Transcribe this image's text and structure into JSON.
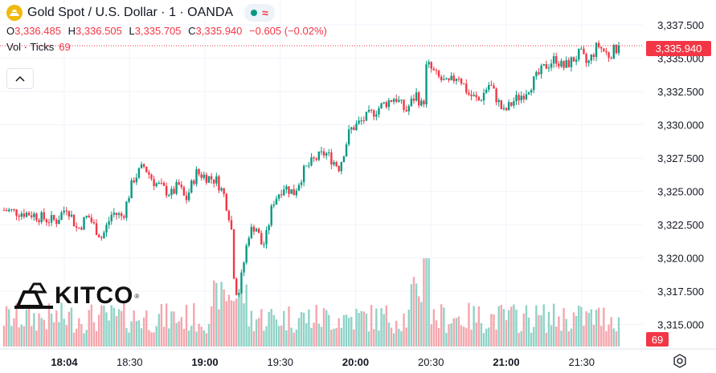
{
  "header": {
    "symbol_title": "Gold Spot / U.S. Dollar · 1 · OANDA",
    "ohlc": {
      "open_key": "O",
      "open": "3,336.485",
      "high_key": "H",
      "high": "3,336.505",
      "low_key": "L",
      "low": "3,335.705",
      "close_key": "C",
      "close": "3,335.940",
      "change": "−0.605 (−0.02%)"
    },
    "volume": {
      "label": "Vol · Ticks",
      "value": "69"
    },
    "status_icon": "market-open-dot",
    "indicator_icon": "wave-icon"
  },
  "logo": {
    "text": "KITCO",
    "registered": "®"
  },
  "last_price_label": "3,335.940",
  "last_volume_label": "69",
  "colors": {
    "up": "#089981",
    "down": "#f23645",
    "vol_up": "#8fd3c7",
    "vol_down": "#f5a6ad",
    "grid": "#f0f3fa",
    "axis_text": "#131722",
    "gold": "#f0b90b"
  },
  "chart_data": {
    "type": "candlestick",
    "ylim": [
      3313.5,
      3338.0
    ],
    "yticks": [
      "3,337.500",
      "3,335.000",
      "3,332.500",
      "3,330.000",
      "3,327.500",
      "3,325.000",
      "3,322.500",
      "3,320.000",
      "3,317.500",
      "3,315.000"
    ],
    "ytick_values": [
      3337.5,
      3335.0,
      3332.5,
      3330.0,
      3327.5,
      3325.0,
      3322.5,
      3320.0,
      3317.5,
      3315.0
    ],
    "xtick_labels": [
      "18:04",
      "18:30",
      "19:00",
      "19:30",
      "20:00",
      "20:30",
      "21:00",
      "21:30"
    ],
    "xtick_minutes": [
      0,
      26,
      56,
      86,
      116,
      146,
      176,
      206
    ],
    "last_price": 3335.94,
    "volume_max": 100,
    "close_path": [
      [
        0,
        3323.6
      ],
      [
        8,
        3323.3
      ],
      [
        12,
        3322.9
      ],
      [
        15,
        3322.8
      ],
      [
        18,
        3323.9
      ],
      [
        21,
        3322.1
      ],
      [
        24,
        3323.2
      ],
      [
        26,
        3322.3
      ],
      [
        28,
        3321.5
      ],
      [
        31,
        3323.4
      ],
      [
        34,
        3323.1
      ],
      [
        37,
        3325.9
      ],
      [
        40,
        3326.9
      ],
      [
        43,
        3325.7
      ],
      [
        46,
        3325.1
      ],
      [
        48,
        3324.8
      ],
      [
        50,
        3325.5
      ],
      [
        52,
        3324.3
      ],
      [
        55,
        3326.4
      ],
      [
        58,
        3326.1
      ],
      [
        61,
        3325.8
      ],
      [
        63,
        3324.7
      ],
      [
        65,
        3322.6
      ],
      [
        66,
        3318.0
      ],
      [
        67,
        3317.2
      ],
      [
        68,
        3318.6
      ],
      [
        70,
        3321.8
      ],
      [
        72,
        3322.5
      ],
      [
        74,
        3320.8
      ],
      [
        75,
        3321.5
      ],
      [
        77,
        3324.2
      ],
      [
        80,
        3325.4
      ],
      [
        83,
        3324.9
      ],
      [
        86,
        3326.6
      ],
      [
        89,
        3327.4
      ],
      [
        92,
        3327.9
      ],
      [
        96,
        3326.8
      ],
      [
        99,
        3329.6
      ],
      [
        103,
        3330.4
      ],
      [
        106,
        3331.0
      ],
      [
        109,
        3331.6
      ],
      [
        112,
        3332.1
      ],
      [
        115,
        3331.0
      ],
      [
        118,
        3332.3
      ],
      [
        120,
        3331.2
      ],
      [
        121,
        3334.6
      ],
      [
        124,
        3333.6
      ],
      [
        127,
        3333.0
      ],
      [
        130,
        3333.8
      ],
      [
        133,
        3332.3
      ],
      [
        136,
        3331.8
      ],
      [
        139,
        3333.1
      ],
      [
        141,
        3332.0
      ],
      [
        143,
        3330.9
      ],
      [
        146,
        3331.8
      ],
      [
        149,
        3332.4
      ],
      [
        152,
        3333.4
      ],
      [
        155,
        3334.4
      ],
      [
        158,
        3335.0
      ],
      [
        160,
        3334.3
      ],
      [
        163,
        3334.9
      ],
      [
        165,
        3335.4
      ],
      [
        167,
        3334.5
      ],
      [
        170,
        3336.0
      ],
      [
        173,
        3335.2
      ],
      [
        176,
        3335.9
      ]
    ]
  }
}
